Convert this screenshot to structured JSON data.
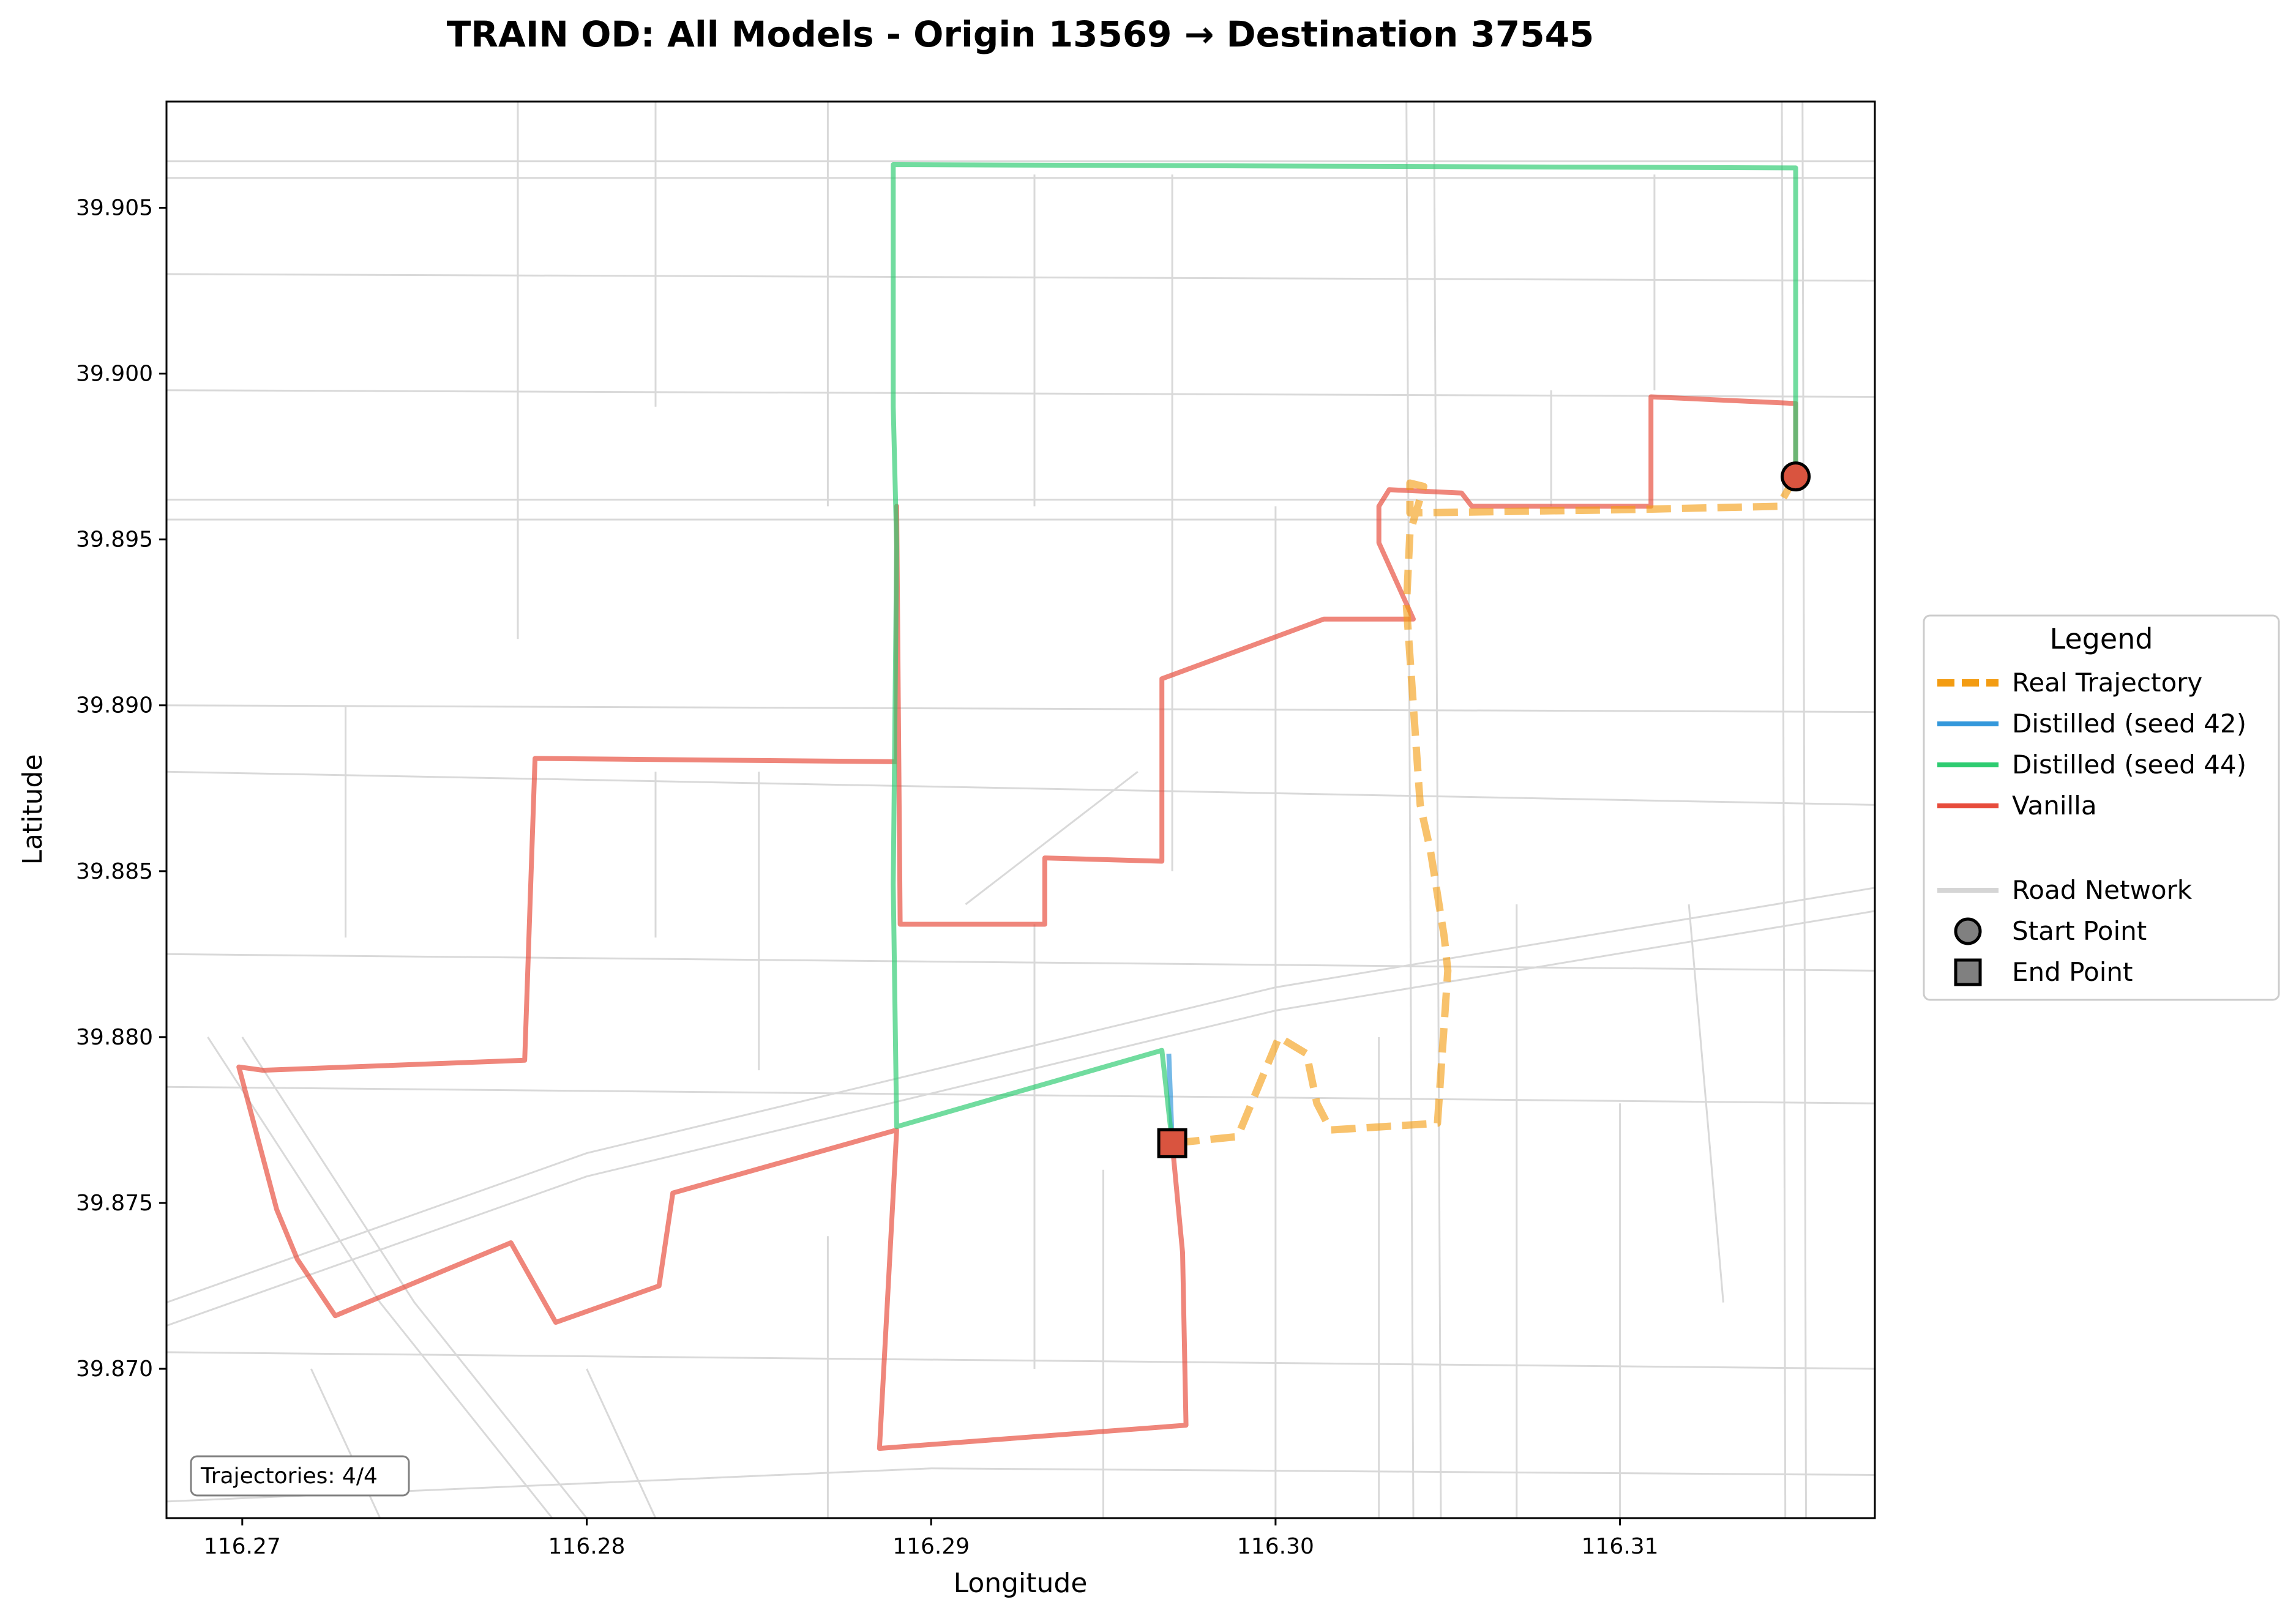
{
  "chart_data": {
    "type": "line",
    "title": "TRAIN OD: All Models - Origin 13569 → Destination 37545",
    "xlabel": "Longitude",
    "ylabel": "Latitude",
    "xlim": [
      116.2678,
      116.3174
    ],
    "ylim": [
      39.8655,
      39.9082
    ],
    "x_ticks": [
      116.27,
      116.28,
      116.29,
      116.3,
      116.31
    ],
    "x_tick_labels": [
      "116.27",
      "116.28",
      "116.29",
      "116.30",
      "116.31"
    ],
    "y_ticks": [
      39.87,
      39.875,
      39.88,
      39.885,
      39.89,
      39.895,
      39.9,
      39.905
    ],
    "y_tick_labels": [
      "39.870",
      "39.875",
      "39.880",
      "39.885",
      "39.890",
      "39.895",
      "39.900",
      "39.905"
    ],
    "grid": false,
    "legend": {
      "title": "Legend",
      "placement": "right-outside",
      "entries": [
        {
          "label": "Real Trajectory",
          "style": "dashed",
          "color": "#F39C12"
        },
        {
          "label": "Distilled (seed 42)",
          "style": "solid",
          "color": "#3498DB"
        },
        {
          "label": "Distilled (seed 44)",
          "style": "solid",
          "color": "#2ECC71"
        },
        {
          "label": "Vanilla",
          "style": "solid",
          "color": "#E74C3C"
        },
        {
          "label": "Road Network",
          "style": "solid",
          "color": "#D5D5D5"
        },
        {
          "label": "Start Point",
          "style": "circle-marker",
          "color": "#808080"
        },
        {
          "label": "End Point",
          "style": "square-marker",
          "color": "#808080"
        }
      ]
    },
    "counter": "Trajectories: 4/4",
    "start_point": {
      "x": 116.3151,
      "y": 39.8969
    },
    "end_point": {
      "x": 116.297,
      "y": 39.8768
    },
    "series": [
      {
        "name": "Real Trajectory",
        "color": "#F39C12",
        "style": "dashed",
        "x": [
          116.3151,
          116.3146,
          116.3102,
          116.3039,
          116.3039,
          116.3043,
          116.3039,
          116.3038,
          116.3042,
          116.3045,
          116.3049,
          116.305,
          116.3047,
          116.3016,
          116.3012,
          116.3009,
          116.3001,
          116.2989,
          116.297
        ],
        "y": [
          39.8969,
          39.896,
          39.8959,
          39.8958,
          39.8967,
          39.8966,
          39.8952,
          39.893,
          39.887,
          39.8856,
          39.883,
          39.882,
          39.8774,
          39.8772,
          39.878,
          39.8795,
          39.88,
          39.877,
          39.8768
        ]
      },
      {
        "name": "Distilled (seed 42)",
        "color": "#3498DB",
        "style": "solid",
        "x": [
          116.297,
          116.2969
        ],
        "y": [
          39.8768,
          39.8795
        ]
      },
      {
        "name": "Distilled (seed 44)",
        "color": "#2ECC71",
        "style": "solid",
        "x": [
          116.297,
          116.2967,
          116.289,
          116.2889,
          116.289,
          116.2889,
          116.2889,
          116.3151,
          116.3151
        ],
        "y": [
          39.8768,
          39.8796,
          39.8773,
          39.8846,
          39.8948,
          39.899,
          39.9063,
          39.9062,
          39.8969
        ]
      },
      {
        "name": "Vanilla",
        "color": "#E74C3C",
        "style": "solid",
        "x": [
          116.297,
          116.2973,
          116.2974,
          116.2885,
          116.289,
          116.2825,
          116.2821,
          116.2791,
          116.2778,
          116.2727,
          116.2716,
          116.271,
          116.2699,
          116.2706,
          116.2782,
          116.2785,
          116.289,
          116.289,
          116.2891,
          116.2933,
          116.2933,
          116.2967,
          116.2967,
          116.3014,
          116.304,
          116.303,
          116.303,
          116.3033,
          116.3054,
          116.3057,
          116.3109,
          116.3109,
          116.3151,
          116.3151
        ],
        "y": [
          39.8768,
          39.8735,
          39.8683,
          39.8676,
          39.8772,
          39.8753,
          39.8725,
          39.8714,
          39.8738,
          39.8716,
          39.8733,
          39.8748,
          39.8791,
          39.879,
          39.8793,
          39.8884,
          39.8883,
          39.896,
          39.8834,
          39.8834,
          39.8854,
          39.8853,
          39.8908,
          39.8926,
          39.8926,
          39.8949,
          39.896,
          39.8965,
          39.8964,
          39.896,
          39.896,
          39.8993,
          39.8991,
          39.8969
        ]
      }
    ],
    "road_network": {
      "color": "#D9D9D9",
      "roads": [
        {
          "x": [
            116.2678,
            116.3174
          ],
          "y": [
            39.9064,
            39.9064
          ]
        },
        {
          "x": [
            116.2678,
            116.3174
          ],
          "y": [
            39.9059,
            39.9059
          ]
        },
        {
          "x": [
            116.2678,
            116.3174
          ],
          "y": [
            39.8962,
            39.8962
          ]
        },
        {
          "x": [
            116.2678,
            116.3174
          ],
          "y": [
            39.8956,
            39.8956
          ]
        },
        {
          "x": [
            116.3038,
            116.304
          ],
          "y": [
            39.9082,
            39.8655
          ]
        },
        {
          "x": [
            116.3046,
            116.3048
          ],
          "y": [
            39.9082,
            39.8655
          ]
        },
        {
          "x": [
            116.3147,
            116.3148
          ],
          "y": [
            39.9082,
            39.8655
          ]
        },
        {
          "x": [
            116.3153,
            116.3154
          ],
          "y": [
            39.9082,
            39.8655
          ]
        },
        {
          "x": [
            116.2678,
            116.28,
            116.3,
            116.3174
          ],
          "y": [
            39.872,
            39.8765,
            39.8815,
            39.8845
          ]
        },
        {
          "x": [
            116.2678,
            116.28,
            116.3,
            116.3174
          ],
          "y": [
            39.8713,
            39.8758,
            39.8808,
            39.8838
          ]
        },
        {
          "x": [
            116.2678,
            116.29,
            116.3174
          ],
          "y": [
            39.866,
            39.867,
            39.8668
          ]
        },
        {
          "x": [
            116.2678,
            116.3174
          ],
          "y": [
            39.8995,
            39.8993
          ]
        },
        {
          "x": [
            116.2678,
            116.3174
          ],
          "y": [
            39.89,
            39.8898
          ]
        },
        {
          "x": [
            116.2678,
            116.3174
          ],
          "y": [
            39.888,
            39.887
          ]
        },
        {
          "x": [
            116.2678,
            116.3174
          ],
          "y": [
            39.8825,
            39.882
          ]
        },
        {
          "x": [
            116.2678,
            116.3174
          ],
          "y": [
            39.8785,
            39.878
          ]
        },
        {
          "x": [
            116.2678,
            116.3174
          ],
          "y": [
            39.8705,
            39.87
          ]
        },
        {
          "x": [
            116.2678,
            116.3174
          ],
          "y": [
            39.903,
            39.9028
          ]
        },
        {
          "x": [
            116.27,
            116.275,
            116.28
          ],
          "y": [
            39.88,
            39.872,
            39.8655
          ]
        },
        {
          "x": [
            116.269,
            116.274,
            116.279
          ],
          "y": [
            39.88,
            39.872,
            39.8655
          ]
        },
        {
          "x": [
            116.278,
            116.278
          ],
          "y": [
            39.9082,
            39.892
          ]
        },
        {
          "x": [
            116.282,
            116.282
          ],
          "y": [
            39.9082,
            39.899
          ]
        },
        {
          "x": [
            116.287,
            116.287
          ],
          "y": [
            39.9082,
            39.896
          ]
        },
        {
          "x": [
            116.293,
            116.293
          ],
          "y": [
            39.906,
            39.896
          ]
        },
        {
          "x": [
            116.297,
            116.297
          ],
          "y": [
            39.906,
            39.885
          ]
        },
        {
          "x": [
            116.3,
            116.3
          ],
          "y": [
            39.896,
            39.8655
          ]
        },
        {
          "x": [
            116.308,
            116.308
          ],
          "y": [
            39.8995,
            39.896
          ]
        },
        {
          "x": [
            116.311,
            116.311
          ],
          "y": [
            39.906,
            39.8995
          ]
        },
        {
          "x": [
            116.312,
            116.313
          ],
          "y": [
            39.884,
            39.872
          ]
        },
        {
          "x": [
            116.273,
            116.273
          ],
          "y": [
            39.89,
            39.883
          ]
        },
        {
          "x": [
            116.282,
            116.282
          ],
          "y": [
            39.888,
            39.883
          ]
        },
        {
          "x": [
            116.285,
            116.285
          ],
          "y": [
            39.888,
            39.879
          ]
        },
        {
          "x": [
            116.291,
            116.296
          ],
          "y": [
            39.884,
            39.888
          ]
        },
        {
          "x": [
            116.293,
            116.293
          ],
          "y": [
            39.8834,
            39.87
          ]
        },
        {
          "x": [
            116.303,
            116.303
          ],
          "y": [
            39.88,
            39.8655
          ]
        },
        {
          "x": [
            116.307,
            116.307
          ],
          "y": [
            39.884,
            39.8655
          ]
        },
        {
          "x": [
            116.31,
            116.31
          ],
          "y": [
            39.878,
            39.8655
          ]
        },
        {
          "x": [
            116.287,
            116.287
          ],
          "y": [
            39.874,
            39.8655
          ]
        },
        {
          "x": [
            116.295,
            116.295
          ],
          "y": [
            39.876,
            39.8655
          ]
        },
        {
          "x": [
            116.28,
            116.282
          ],
          "y": [
            39.87,
            39.8655
          ]
        },
        {
          "x": [
            116.272,
            116.274
          ],
          "y": [
            39.87,
            39.8655
          ]
        }
      ]
    }
  }
}
